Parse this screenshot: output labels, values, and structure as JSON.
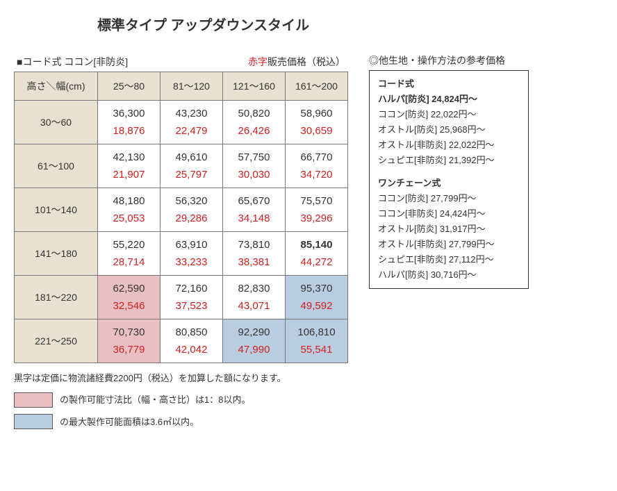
{
  "title": "標準タイプ アップダウンスタイル",
  "table_label_prefix": "■コード式 ココン[非防炎]",
  "price_note_red": "赤字",
  "price_note_rest": "販売価格（税込）",
  "corner_header": "高さ＼幅(cm)",
  "col_headers": [
    "25～80",
    "81～120",
    "121～160",
    "161～200"
  ],
  "row_headers": [
    "30～60",
    "61～100",
    "101～140",
    "141～180",
    "181～220",
    "221～250"
  ],
  "black_prices": [
    [
      "36,300",
      "43,230",
      "50,820",
      "58,960"
    ],
    [
      "42,130",
      "49,610",
      "57,750",
      "66,770"
    ],
    [
      "48,180",
      "56,320",
      "65,670",
      "75,570"
    ],
    [
      "55,220",
      "63,910",
      "73,810",
      "85,140"
    ],
    [
      "62,590",
      "72,160",
      "82,830",
      "95,370"
    ],
    [
      "70,730",
      "80,850",
      "92,290",
      "106,810"
    ]
  ],
  "red_prices": [
    [
      "18,876",
      "22,479",
      "26,426",
      "30,659"
    ],
    [
      "21,907",
      "25,797",
      "30,030",
      "34,720"
    ],
    [
      "25,053",
      "29,286",
      "34,148",
      "39,296"
    ],
    [
      "28,714",
      "33,233",
      "38,381",
      "44,272"
    ],
    [
      "32,546",
      "37,523",
      "43,071",
      "49,592"
    ],
    [
      "36,779",
      "42,042",
      "47,990",
      "55,541"
    ]
  ],
  "bold_cells": [
    [
      3,
      3
    ]
  ],
  "pink_cells": [
    [
      4,
      0
    ],
    [
      5,
      0
    ]
  ],
  "blue_cells": [
    [
      4,
      3
    ],
    [
      5,
      2
    ],
    [
      5,
      3
    ]
  ],
  "footnote": "黒字は定価に物流諸経費2200円（税込）を加算した額になります。",
  "legend_pink": "の製作可能寸法比（幅・高さ比）は1：8以内。",
  "legend_blue": "の最大製作可能面積は3.6㎡以内。",
  "ref_title": "◎他生地・操作方法の参考価格",
  "ref_groups": [
    {
      "head": "コード式",
      "bold_first": true,
      "items": [
        "ハルパ[防炎] 24,824円～",
        "ココン[防炎] 22,022円～",
        "オストル[防炎] 25,968円～",
        "オストル[非防炎] 22,022円～",
        "シュピエ[非防炎] 21,392円～"
      ]
    },
    {
      "head": "ワンチェーン式",
      "bold_first": false,
      "items": [
        "ココン[防炎] 27,799円～",
        "ココン[非防炎] 24,424円～",
        "オストル[防炎] 31,917円～",
        "オストル[非防炎] 27,799円～",
        "シュピエ[非防炎] 27,112円～",
        "ハルパ[防炎] 30,716円～"
      ]
    }
  ],
  "colors": {
    "beige": "#e8e0d0",
    "pink": "#e9bfc3",
    "blue": "#b9cce0",
    "red_text": "#d02020"
  }
}
